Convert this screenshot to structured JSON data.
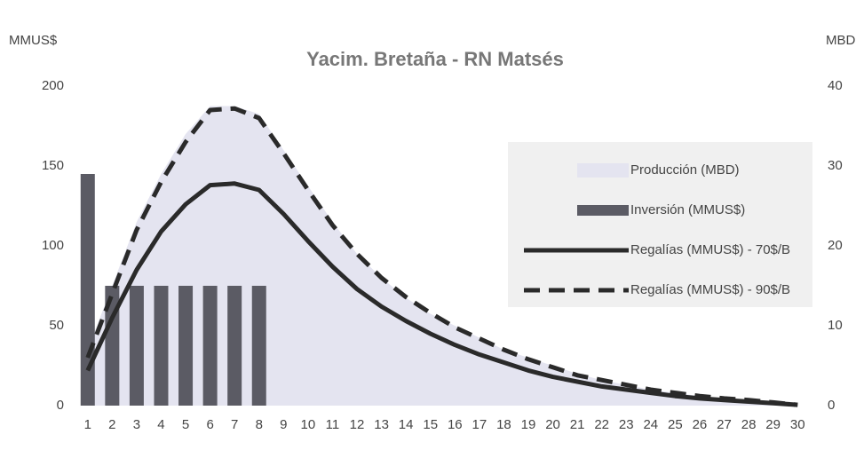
{
  "chart_data": {
    "type": "combo",
    "title": "Yacim. Bretaña - RN Matsés",
    "y_label": "MMUS$",
    "y2_label": "MBD",
    "categories": [
      "1",
      "2",
      "3",
      "4",
      "5",
      "6",
      "7",
      "8",
      "9",
      "10",
      "11",
      "12",
      "13",
      "14",
      "15",
      "16",
      "17",
      "18",
      "19",
      "20",
      "21",
      "22",
      "23",
      "24",
      "25",
      "26",
      "27",
      "28",
      "29",
      "30"
    ],
    "ylim": [
      0,
      200
    ],
    "yticks": [
      0,
      50,
      100,
      150,
      200
    ],
    "y2lim": [
      0,
      40
    ],
    "y2ticks": [
      0,
      10,
      20,
      30,
      40
    ],
    "legend": "right",
    "series": [
      {
        "name": "Producción (MBD)",
        "type": "area",
        "axis": "y2",
        "color": "#e4e4f0",
        "values": [
          7,
          15,
          23,
          29,
          34,
          37.5,
          37.5,
          36.5,
          32,
          27.5,
          23,
          19,
          16,
          13.5,
          11.5,
          10,
          8.5,
          7,
          6,
          5,
          4,
          3.2,
          2.6,
          2,
          1.6,
          1.2,
          0.9,
          0.6,
          0.4,
          0.1
        ]
      },
      {
        "name": "Inversión (MMUS$)",
        "type": "bar",
        "color": "#5b5b64",
        "values": [
          145,
          75,
          75,
          75,
          75,
          75,
          75,
          75,
          null,
          null,
          null,
          null,
          null,
          null,
          null,
          null,
          null,
          null,
          null,
          null,
          null,
          null,
          null,
          null,
          null,
          null,
          null,
          null,
          null,
          null
        ]
      },
      {
        "name": "Regalías (MMUS$) - 70$/B",
        "type": "line",
        "dash": false,
        "color": "#2a2a2a",
        "values": [
          22,
          55,
          85,
          109,
          126,
          138,
          139,
          135,
          120,
          103,
          87,
          73,
          62,
          53,
          45,
          38,
          32,
          27,
          22,
          18,
          15,
          12,
          10,
          8,
          6,
          4.5,
          3.5,
          2.5,
          1.5,
          0.5
        ]
      },
      {
        "name": "Regalías (MMUS$) - 90$/B",
        "type": "line",
        "dash": true,
        "color": "#2a2a2a",
        "values": [
          30,
          70,
          110,
          140,
          165,
          185,
          186,
          180,
          158,
          135,
          113,
          95,
          80,
          68,
          58,
          49,
          42,
          35,
          29,
          24,
          19,
          16,
          13,
          10,
          8,
          6,
          4.5,
          3.5,
          2,
          0.5
        ]
      }
    ]
  }
}
